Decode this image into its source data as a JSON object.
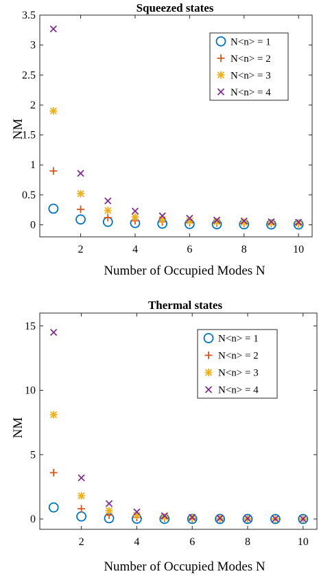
{
  "chart_data": [
    {
      "type": "scatter",
      "title": "Squeezed states",
      "xlabel": "Number of Occupied Modes N",
      "ylabel": "NM",
      "xlim": [
        0.5,
        10.5
      ],
      "ylim": [
        -0.2,
        3.5
      ],
      "xticks": [
        "2",
        "4",
        "6",
        "8",
        "10"
      ],
      "yticks": [
        "0",
        "0.5",
        "1",
        "1.5",
        "2",
        "2.5",
        "3",
        "3.5"
      ],
      "legend_position": "top-right",
      "series": [
        {
          "name": "N<n> = 1",
          "marker": "circle",
          "color": "#0072BD",
          "x": [
            1,
            2,
            3,
            4,
            5,
            6,
            7,
            8,
            9,
            10
          ],
          "y": [
            0.27,
            0.09,
            0.05,
            0.03,
            0.02,
            0.015,
            0.011,
            0.009,
            0.007,
            0.006
          ]
        },
        {
          "name": "N<n> = 2",
          "marker": "plus",
          "color": "#D95319",
          "x": [
            1,
            2,
            3,
            4,
            5,
            6,
            7,
            8,
            9,
            10
          ],
          "y": [
            0.9,
            0.26,
            0.12,
            0.07,
            0.05,
            0.04,
            0.03,
            0.025,
            0.02,
            0.017
          ]
        },
        {
          "name": "N<n> = 3",
          "marker": "asterisk",
          "color": "#EDB120",
          "x": [
            1,
            2,
            3,
            4,
            5,
            6,
            7,
            8,
            9,
            10
          ],
          "y": [
            1.9,
            0.52,
            0.24,
            0.13,
            0.09,
            0.065,
            0.05,
            0.04,
            0.032,
            0.027
          ]
        },
        {
          "name": "N<n> = 4",
          "marker": "cross",
          "color": "#7E2F8E",
          "x": [
            1,
            2,
            3,
            4,
            5,
            6,
            7,
            8,
            9,
            10
          ],
          "y": [
            3.27,
            0.86,
            0.4,
            0.23,
            0.15,
            0.11,
            0.08,
            0.065,
            0.052,
            0.043
          ]
        }
      ]
    },
    {
      "type": "scatter",
      "title": "Thermal states",
      "xlabel": "Number of Occupied Modes N",
      "ylabel": "NM",
      "xlim": [
        0.5,
        10.5
      ],
      "ylim": [
        -0.8,
        16
      ],
      "xticks": [
        "2",
        "4",
        "6",
        "8",
        "10"
      ],
      "yticks": [
        "0",
        "5",
        "10",
        "15"
      ],
      "legend_position": "top-right",
      "series": [
        {
          "name": "N<n> = 1",
          "marker": "circle",
          "color": "#0072BD",
          "x": [
            1,
            2,
            3,
            4,
            5,
            6,
            7,
            8,
            9,
            10
          ],
          "y": [
            0.9,
            0.2,
            0.06,
            0.02,
            0.01,
            0.006,
            0.004,
            0.003,
            0.002,
            0.001
          ]
        },
        {
          "name": "N<n> = 2",
          "marker": "plus",
          "color": "#D95319",
          "x": [
            1,
            2,
            3,
            4,
            5,
            6,
            7,
            8,
            9,
            10
          ],
          "y": [
            3.6,
            0.8,
            0.3,
            0.12,
            0.06,
            0.03,
            0.015,
            0.01,
            0.006,
            0.004
          ]
        },
        {
          "name": "N<n> = 3",
          "marker": "asterisk",
          "color": "#EDB120",
          "x": [
            1,
            2,
            3,
            4,
            5,
            6,
            7,
            8,
            9,
            10
          ],
          "y": [
            8.1,
            1.8,
            0.65,
            0.3,
            0.15,
            0.08,
            0.04,
            0.02,
            0.01,
            0.006
          ]
        },
        {
          "name": "N<n> = 4",
          "marker": "cross",
          "color": "#7E2F8E",
          "x": [
            1,
            2,
            3,
            4,
            5,
            6,
            7,
            8,
            9,
            10
          ],
          "y": [
            14.5,
            3.2,
            1.2,
            0.55,
            0.25,
            0.13,
            0.07,
            0.04,
            0.02,
            0.01
          ]
        }
      ]
    }
  ]
}
